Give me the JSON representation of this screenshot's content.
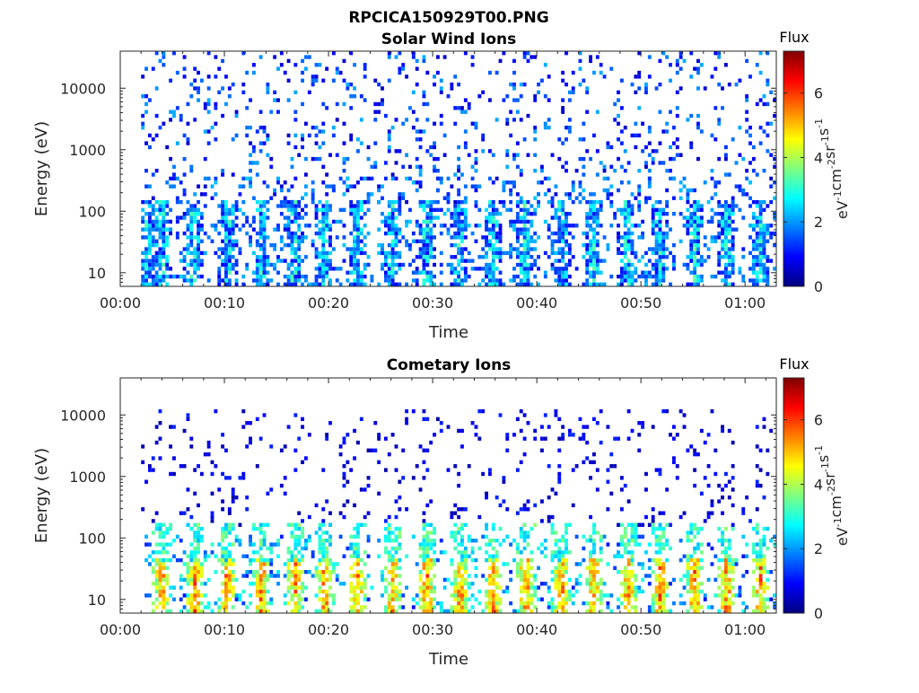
{
  "figure": {
    "filename": "RPCICA150929T00.PNG"
  },
  "colors": {
    "axis": "#262626",
    "colormap": [
      "#00007f",
      "#0000ff",
      "#007fff",
      "#00ffff",
      "#7fff7f",
      "#ffff00",
      "#ff7f00",
      "#ff0000",
      "#7f0000"
    ]
  },
  "chart_data": [
    {
      "type": "heatmap",
      "title": "Solar Wind Ions",
      "xlabel": "Time",
      "ylabel": "Energy (eV)",
      "yscale": "log",
      "xlim": [
        "00:00",
        "01:03"
      ],
      "ylim": [
        6,
        40000
      ],
      "xticks": [
        "00:00",
        "00:10",
        "00:20",
        "00:30",
        "00:40",
        "00:50",
        "01:00"
      ],
      "yticks": [
        "10",
        "100",
        "1000",
        "10000"
      ],
      "colorbar": {
        "label": "Flux",
        "unit_base": [
          "eV",
          "cm",
          "sr",
          "s"
        ],
        "unit_exponents": [
          "-1",
          "-2",
          "-1",
          "-1"
        ],
        "range": [
          0,
          7.3
        ],
        "ticks": [
          "0",
          "2",
          "4",
          "6"
        ]
      },
      "bursts_minutes": [
        2.5,
        3.9,
        6.8,
        10.2,
        13.4,
        16.5,
        19.4,
        22.6,
        26.0,
        29.2,
        32.4,
        35.6,
        38.7,
        42.2,
        45.3,
        48.5,
        51.6,
        55.0,
        58.1,
        61.3
      ],
      "burst_energy_range": [
        6,
        150
      ],
      "burst_flux_range": [
        1.0,
        3.6
      ],
      "background_energy_range": [
        150,
        40000
      ],
      "background_flux_range": [
        0.5,
        2.2
      ],
      "background_density": 0.12,
      "data_start_minute": 2.0
    },
    {
      "type": "heatmap",
      "title": "Cometary Ions",
      "xlabel": "Time",
      "ylabel": "Energy (eV)",
      "yscale": "log",
      "xlim": [
        "00:00",
        "01:03"
      ],
      "ylim": [
        6,
        40000
      ],
      "xticks": [
        "00:00",
        "00:10",
        "00:20",
        "00:30",
        "00:40",
        "00:50",
        "01:00"
      ],
      "yticks": [
        "10",
        "100",
        "1000",
        "10000"
      ],
      "colorbar": {
        "label": "Flux",
        "unit_base": [
          "eV",
          "cm",
          "sr",
          "s"
        ],
        "unit_exponents": [
          "-1",
          "-2",
          "-1",
          "-1"
        ],
        "range": [
          0,
          7.3
        ],
        "ticks": [
          "0",
          "2",
          "4",
          "6"
        ]
      },
      "bursts_minutes": [
        3.8,
        7.0,
        10.1,
        13.4,
        16.6,
        19.5,
        22.6,
        26.0,
        29.3,
        32.5,
        35.7,
        38.8,
        42.2,
        45.3,
        48.6,
        51.7,
        55.0,
        58.1,
        61.3
      ],
      "burst_energy_range": [
        6,
        45
      ],
      "burst_flux_range": [
        4.2,
        6.3
      ],
      "halo_energy_range": [
        45,
        160
      ],
      "halo_flux_range": [
        2.2,
        3.8
      ],
      "background_energy_range": [
        160,
        11000
      ],
      "background_flux_range": [
        0.3,
        1.2
      ],
      "background_density": 0.07,
      "data_start_minute": 2.0
    }
  ]
}
